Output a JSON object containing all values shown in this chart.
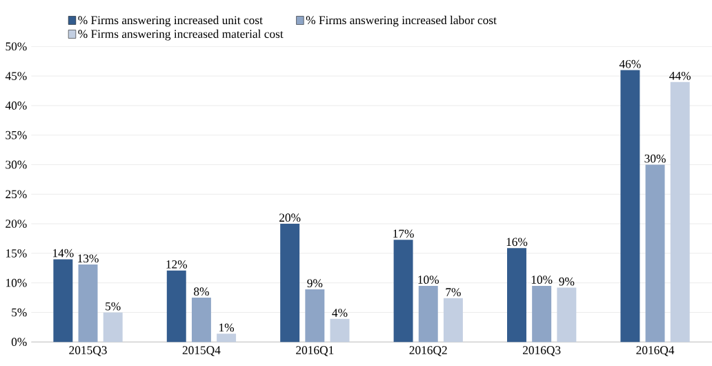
{
  "chart_data": {
    "type": "bar",
    "categories": [
      "2015Q3",
      "2015Q4",
      "2016Q1",
      "2016Q2",
      "2016Q3",
      "2016Q4"
    ],
    "series": [
      {
        "name": "% Firms answering increased unit cost",
        "color": "#335c8e",
        "values": [
          14,
          12.1,
          20,
          17.3,
          15.9,
          46
        ],
        "value_labels": [
          "14%",
          "12%",
          "20%",
          "17%",
          "16%",
          "46%"
        ]
      },
      {
        "name": "% Firms answering increased labor cost",
        "color": "#8ea5c6",
        "values": [
          13.1,
          7.5,
          8.9,
          9.5,
          9.5,
          30
        ],
        "value_labels": [
          "13%",
          "8%",
          "9%",
          "10%",
          "10%",
          "30%"
        ]
      },
      {
        "name": "% Firms answering increased material cost",
        "color": "#c3cfe2",
        "values": [
          5,
          1.4,
          3.9,
          7.4,
          9.2,
          44
        ],
        "value_labels": [
          "5%",
          "1%",
          "4%",
          "7%",
          "9%",
          "44%"
        ]
      }
    ],
    "ylim": [
      0,
      50
    ],
    "yticks": [
      {
        "value": 0,
        "label": "0%"
      },
      {
        "value": 5,
        "label": "5%"
      },
      {
        "value": 10,
        "label": "10%"
      },
      {
        "value": 15,
        "label": "15%"
      },
      {
        "value": 20,
        "label": "20%"
      },
      {
        "value": 25,
        "label": "25%"
      },
      {
        "value": 30,
        "label": "30%"
      },
      {
        "value": 35,
        "label": "35%"
      },
      {
        "value": 40,
        "label": "40%"
      },
      {
        "value": 45,
        "label": "45%"
      },
      {
        "value": 50,
        "label": "50%"
      }
    ],
    "grid": "y",
    "legend": "top"
  }
}
